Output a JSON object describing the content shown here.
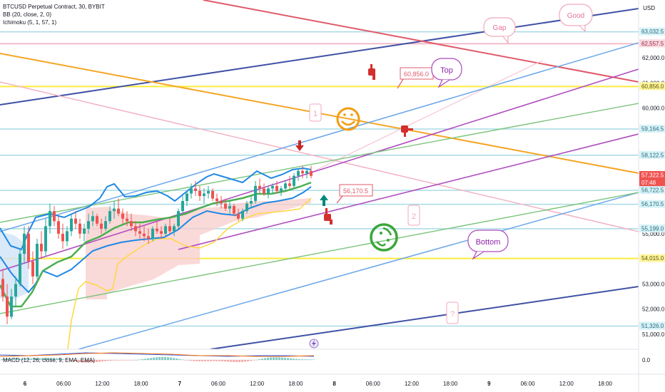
{
  "legend": {
    "symbol": "BTCUSD Perpetual Contract, 30, BYBIT",
    "bb": "BB (20, close, 2, 0)",
    "ichimoku": "Ichimoku (5, 1, 57, 1)"
  },
  "macd_label": "MACD (12, 26, close, 9, EMA, EMA)",
  "axis_currency": "USD",
  "colors": {
    "up": "#26a69a",
    "down": "#ef5350",
    "bb": "#1e88e5",
    "basis": "#4caf50",
    "cloud": "#f8c9c9",
    "kumo_line": "#ffeb3b",
    "annotation": "#e57399",
    "purple": "#ab47bc",
    "orange": "#f39c12",
    "navy": "#3f51a5"
  },
  "chart_data": {
    "type": "candlestick",
    "y_axis": {
      "ticks": [
        {
          "value": 51000,
          "label": "51,000.0"
        },
        {
          "value": 52000,
          "label": "52,000.0"
        },
        {
          "value": 53000,
          "label": "53,000.0"
        },
        {
          "value": 55000,
          "label": "55,000.0"
        },
        {
          "value": 60000,
          "label": "60,000.0"
        },
        {
          "value": 61000,
          "label": "61,000.0"
        },
        {
          "value": 62000,
          "label": "62,000.0"
        }
      ],
      "markers": [
        {
          "value": 63032.5,
          "label": "63,032.5",
          "bg": "#d6f2f8",
          "fg": "#2a6a7a"
        },
        {
          "value": 62557.5,
          "label": "62,557.5",
          "bg": "#f8d7df",
          "fg": "#9a2a4a"
        },
        {
          "value": 60856.0,
          "label": "60,856.0",
          "bg": "#fff59d",
          "fg": "#5a5200"
        },
        {
          "value": 59164.5,
          "label": "59,164.5",
          "bg": "#d6f2f8",
          "fg": "#2a6a7a"
        },
        {
          "value": 58122.5,
          "label": "58,122.5",
          "bg": "#d6f2f8",
          "fg": "#2a6a7a"
        },
        {
          "value": 57322.5,
          "label": "57,322.5",
          "bg": "#ef5350",
          "fg": "#ffffff",
          "sub": "07:48"
        },
        {
          "value": 56722.5,
          "label": "56,722.5",
          "bg": "#d6f2f8",
          "fg": "#2a6a7a"
        },
        {
          "value": 56170.5,
          "label": "56,170.5",
          "bg": "#d6f2f8",
          "fg": "#2a6a7a"
        },
        {
          "value": 55199.0,
          "label": "55,199.0",
          "bg": "#d6f2f8",
          "fg": "#2a6a7a"
        },
        {
          "value": 54015.0,
          "label": "54,015.0",
          "bg": "#fff59d",
          "fg": "#5a5200"
        },
        {
          "value": 51326.0,
          "label": "51,326.0",
          "bg": "#d6f2f8",
          "fg": "#2a6a7a"
        }
      ],
      "macd_zero": "0.0"
    },
    "x_axis": {
      "ticks": [
        {
          "label": "6",
          "bold": true
        },
        {
          "label": "06:00"
        },
        {
          "label": "12:00"
        },
        {
          "label": "18:00"
        },
        {
          "label": "7",
          "bold": true
        },
        {
          "label": "06:00"
        },
        {
          "label": "12:00"
        },
        {
          "label": "18:00"
        },
        {
          "label": "8",
          "bold": true
        },
        {
          "label": "06:00"
        },
        {
          "label": "12:00"
        },
        {
          "label": "18:00"
        },
        {
          "label": "9",
          "bold": true
        },
        {
          "label": "06:00"
        },
        {
          "label": "12:00"
        },
        {
          "label": "18:00"
        }
      ]
    },
    "horizontal_levels": [
      63032.5,
      62557.5,
      60856.0,
      59164.5,
      58122.5,
      56722.5,
      56170.5,
      55199.0,
      54015.0,
      51326.0
    ],
    "ohlc": [
      [
        53200,
        53600,
        52300,
        52500
      ],
      [
        52500,
        53000,
        51400,
        51700
      ],
      [
        51700,
        52800,
        51600,
        52500
      ],
      [
        52500,
        53300,
        52100,
        53000
      ],
      [
        53000,
        54400,
        52900,
        54200
      ],
      [
        54200,
        55300,
        53800,
        55000
      ],
      [
        55000,
        55300,
        53600,
        53900
      ],
      [
        53900,
        54300,
        53000,
        53300
      ],
      [
        53300,
        54800,
        53200,
        54600
      ],
      [
        54600,
        55100,
        54000,
        54300
      ],
      [
        54300,
        55600,
        54100,
        55300
      ],
      [
        55300,
        56200,
        55000,
        55900
      ],
      [
        55900,
        56100,
        55300,
        55500
      ],
      [
        55500,
        55700,
        54800,
        55000
      ],
      [
        55000,
        55400,
        54400,
        54700
      ],
      [
        54700,
        55300,
        54500,
        55100
      ],
      [
        55100,
        55800,
        54900,
        55600
      ],
      [
        55600,
        55900,
        55200,
        55400
      ],
      [
        55400,
        55600,
        54800,
        55000
      ],
      [
        55000,
        55400,
        54700,
        55200
      ],
      [
        55200,
        55800,
        55000,
        55500
      ],
      [
        55500,
        55900,
        55300,
        55700
      ],
      [
        55700,
        55800,
        55300,
        55400
      ],
      [
        55400,
        55600,
        55000,
        55200
      ],
      [
        55200,
        55700,
        55100,
        55500
      ],
      [
        55500,
        56100,
        55400,
        55900
      ],
      [
        55900,
        56300,
        55600,
        56000
      ],
      [
        56000,
        56400,
        55700,
        55800
      ],
      [
        55800,
        56000,
        55400,
        55600
      ],
      [
        55600,
        55900,
        55300,
        55500
      ],
      [
        55500,
        55800,
        55100,
        55300
      ],
      [
        55300,
        55500,
        54900,
        55100
      ],
      [
        55100,
        55400,
        54800,
        55000
      ],
      [
        55000,
        55300,
        54700,
        54900
      ],
      [
        54900,
        55200,
        54600,
        54800
      ],
      [
        54800,
        55300,
        54700,
        55200
      ],
      [
        55200,
        55500,
        55000,
        55100
      ],
      [
        55100,
        55300,
        54800,
        55000
      ],
      [
        55000,
        55400,
        54900,
        55300
      ],
      [
        55300,
        55600,
        55000,
        55100
      ],
      [
        55100,
        55400,
        54900,
        55300
      ],
      [
        55300,
        56000,
        55200,
        55900
      ],
      [
        55900,
        56500,
        55800,
        56300
      ],
      [
        56300,
        56700,
        56100,
        56600
      ],
      [
        56600,
        57000,
        56400,
        56800
      ],
      [
        56800,
        57100,
        56500,
        56700
      ],
      [
        56700,
        56900,
        56300,
        56500
      ],
      [
        56500,
        56800,
        56200,
        56600
      ],
      [
        56600,
        56900,
        56400,
        56700
      ],
      [
        56700,
        56800,
        56300,
        56400
      ],
      [
        56400,
        56600,
        56100,
        56300
      ],
      [
        56300,
        56500,
        56000,
        56200
      ],
      [
        56200,
        56400,
        55900,
        56000
      ],
      [
        56000,
        56300,
        55800,
        56100
      ],
      [
        56100,
        56200,
        55700,
        55800
      ],
      [
        55800,
        56000,
        55500,
        55600
      ],
      [
        55600,
        56000,
        55500,
        55900
      ],
      [
        55900,
        56300,
        55800,
        56200
      ],
      [
        56200,
        56500,
        56000,
        56300
      ],
      [
        56300,
        57100,
        56200,
        56900
      ],
      [
        56900,
        57200,
        56600,
        56800
      ],
      [
        56800,
        57000,
        56500,
        56600
      ],
      [
        56600,
        56900,
        56400,
        56800
      ],
      [
        56800,
        57000,
        56600,
        56900
      ],
      [
        56900,
        57100,
        56600,
        56700
      ],
      [
        56700,
        56900,
        56500,
        56800
      ],
      [
        56800,
        57100,
        56700,
        57000
      ],
      [
        57000,
        57300,
        56800,
        56900
      ],
      [
        56900,
        57400,
        56800,
        57300
      ],
      [
        57300,
        57600,
        57100,
        57500
      ],
      [
        57500,
        57700,
        57200,
        57400
      ],
      [
        57400,
        57600,
        57200,
        57500
      ],
      [
        57500,
        57700,
        57200,
        57300
      ]
    ],
    "annotations": [
      {
        "text": "60,856.0",
        "kind": "callout"
      },
      {
        "text": "56,170.5",
        "kind": "callout"
      },
      {
        "text": "Top",
        "kind": "bubble"
      },
      {
        "text": "Bottom",
        "kind": "bubble"
      },
      {
        "text": "Gap",
        "kind": "bubble"
      },
      {
        "text": "Good",
        "kind": "bubble"
      },
      {
        "text": "1",
        "kind": "note"
      },
      {
        "text": "2",
        "kind": "note"
      },
      {
        "text": "?",
        "kind": "note"
      }
    ]
  }
}
